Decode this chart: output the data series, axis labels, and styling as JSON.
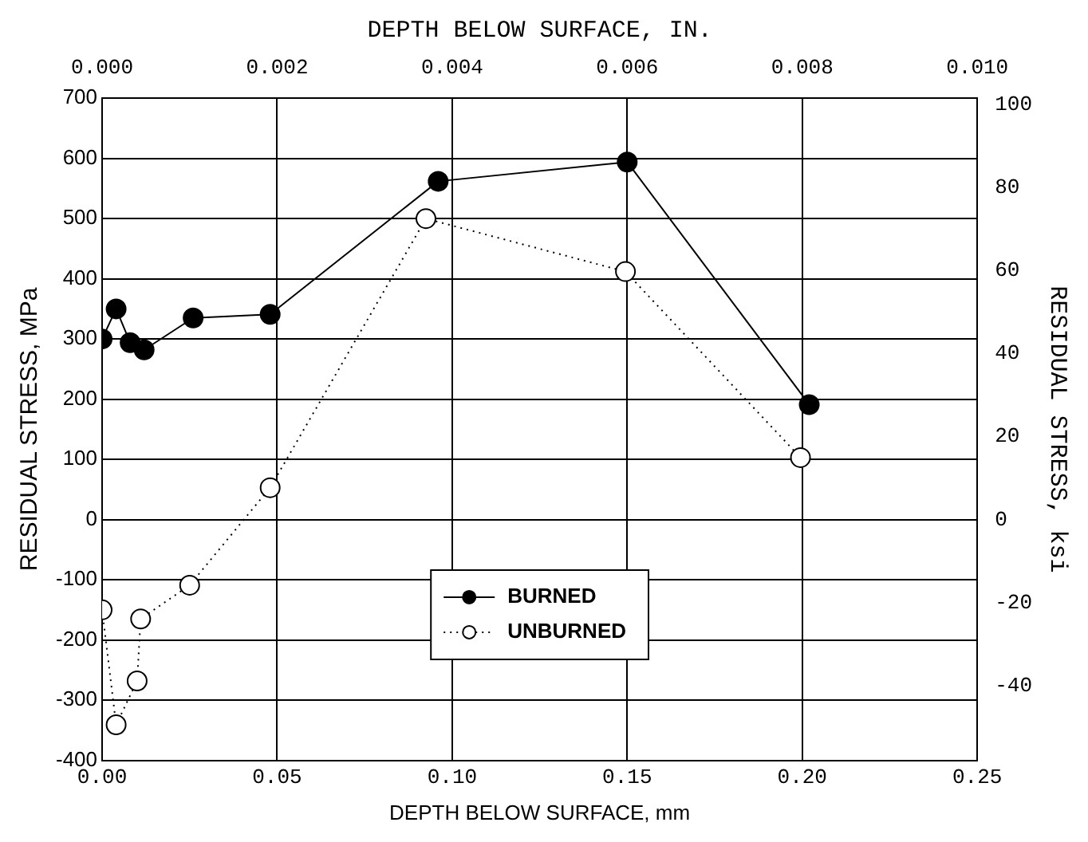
{
  "chart_data": {
    "type": "line",
    "xlabel": "DEPTH BELOW SURFACE, mm",
    "ylabel": "RESIDUAL STRESS, MPa",
    "y2label": "RESIDUAL STRESS, ksi",
    "x2label": "DEPTH BELOW SURFACE, IN.",
    "xlim": [
      0,
      0.25
    ],
    "xticks": [
      {
        "value": 0,
        "label": "0.00"
      },
      {
        "value": 0.05,
        "label": "0.05"
      },
      {
        "value": 0.1,
        "label": "0.10"
      },
      {
        "value": 0.15,
        "label": "0.15"
      },
      {
        "value": 0.2,
        "label": "0.20"
      },
      {
        "value": 0.25,
        "label": "0.25"
      }
    ],
    "x2lim": [
      0,
      0.01
    ],
    "x2ticks": [
      {
        "value": 0,
        "label": "0.000"
      },
      {
        "value": 0.002,
        "label": "0.002"
      },
      {
        "value": 0.004,
        "label": "0.004"
      },
      {
        "value": 0.006,
        "label": "0.006"
      },
      {
        "value": 0.008,
        "label": "0.008"
      },
      {
        "value": 0.01,
        "label": "0.010"
      }
    ],
    "ylim": [
      -400,
      700
    ],
    "yticks": [
      -400,
      -300,
      -200,
      -100,
      0,
      100,
      200,
      300,
      400,
      500,
      600,
      700
    ],
    "y2lim": [
      -58,
      101.5
    ],
    "y2ticks": [
      -40,
      -20,
      0,
      20,
      40,
      60,
      80,
      100
    ],
    "grid": true,
    "legend": "bottom",
    "marker": "circle",
    "series": [
      {
        "name": "BURNED",
        "color": "#000000",
        "line_style": "solid",
        "x": [
          0,
          0.004,
          0.008,
          0.012,
          0.026,
          0.048,
          0.096,
          0.15,
          0.202
        ],
        "values": [
          300,
          350,
          294,
          282,
          335,
          341,
          562,
          594,
          191
        ]
      },
      {
        "name": "UNBURNED",
        "color": "#000000",
        "line_style": "dotted",
        "x": [
          0,
          0.004,
          0.01,
          0.011,
          0.025,
          0.048,
          0.0925,
          0.1495,
          0.1995
        ],
        "values": [
          -150,
          -341,
          -268,
          -165,
          -109,
          53,
          500,
          412,
          103
        ]
      }
    ]
  }
}
